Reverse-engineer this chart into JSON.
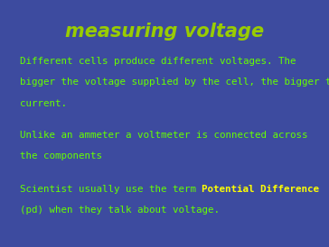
{
  "title": "measuring voltage",
  "title_color": "#99cc00",
  "title_fontsize": 15,
  "background_color": "#3d4b9f",
  "body_text_color": "#66ff00",
  "highlight_color": "#ffff00",
  "body_fontsize": 7.8,
  "para1_line1": "Different cells produce different voltages. The",
  "para1_line2": "bigger the voltage supplied by the cell, the bigger the",
  "para1_line3": "current.",
  "para2_line1": "Unlike an ammeter a voltmeter is connected across",
  "para2_line2": "the components",
  "para3_before": "Scientist usually use the term ",
  "para3_highlight": "Potential Difference",
  "para4": "(pd) when they talk about voltage.",
  "figsize": [
    3.64,
    2.74
  ],
  "dpi": 100
}
